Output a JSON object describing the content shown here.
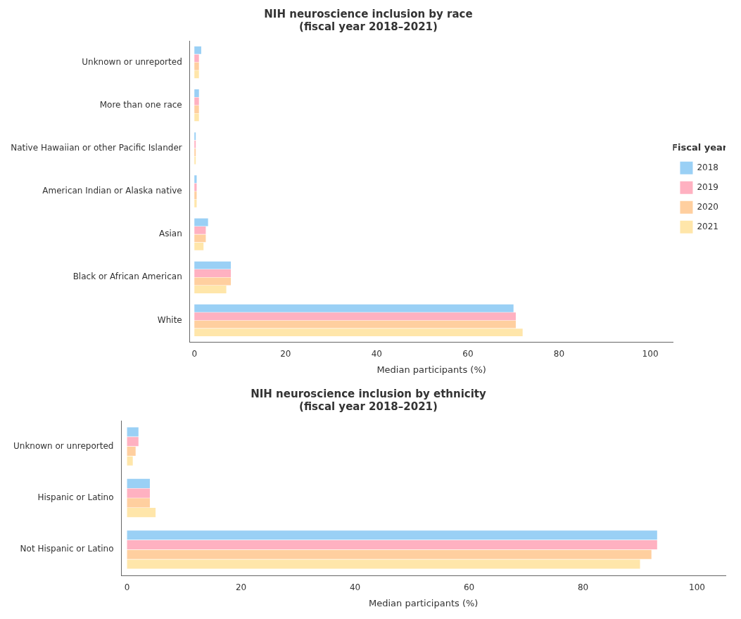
{
  "chart_data": [
    {
      "type": "bar",
      "orientation": "horizontal",
      "title": "NIH neuroscience inclusion by race\n(fiscal year 2018–2021)",
      "xlabel": "Median participants (%)",
      "categories": [
        "White",
        "Black or African American",
        "Asian",
        "American Indian or Alaska native",
        "Native Hawaiian or other Pacific Islander",
        "More than one race",
        "Unknown or unreported"
      ],
      "series": [
        {
          "name": "2018",
          "values": [
            70.0,
            8.0,
            3.0,
            0.5,
            0.3,
            1.0,
            1.5
          ]
        },
        {
          "name": "2019",
          "values": [
            70.5,
            8.0,
            2.5,
            0.5,
            0.3,
            1.0,
            1.0
          ]
        },
        {
          "name": "2020",
          "values": [
            70.5,
            8.0,
            2.5,
            0.5,
            0.3,
            1.0,
            1.0
          ]
        },
        {
          "name": "2021",
          "values": [
            72.0,
            7.0,
            2.0,
            0.5,
            0.3,
            1.0,
            1.0
          ]
        }
      ],
      "xlim": [
        -1,
        105
      ],
      "xticks": [
        0,
        20,
        40,
        60,
        80,
        100
      ],
      "grid": false,
      "legend": "right",
      "legend_title": "Fiscal year"
    },
    {
      "type": "bar",
      "orientation": "horizontal",
      "title": "NIH neuroscience inclusion by ethnicity\n(fiscal year 2018–2021)",
      "xlabel": "Median participants (%)",
      "categories": [
        "Not Hispanic or Latino",
        "Hispanic or Latino",
        "Unknown or unreported"
      ],
      "series": [
        {
          "name": "2018",
          "values": [
            93.0,
            4.0,
            2.0
          ]
        },
        {
          "name": "2019",
          "values": [
            93.0,
            4.0,
            2.0
          ]
        },
        {
          "name": "2020",
          "values": [
            92.0,
            4.0,
            1.5
          ]
        },
        {
          "name": "2021",
          "values": [
            90.0,
            5.0,
            1.0
          ]
        }
      ],
      "xlim": [
        -1,
        105
      ],
      "xticks": [
        0,
        20,
        40,
        60,
        80,
        100
      ],
      "grid": false
    }
  ]
}
